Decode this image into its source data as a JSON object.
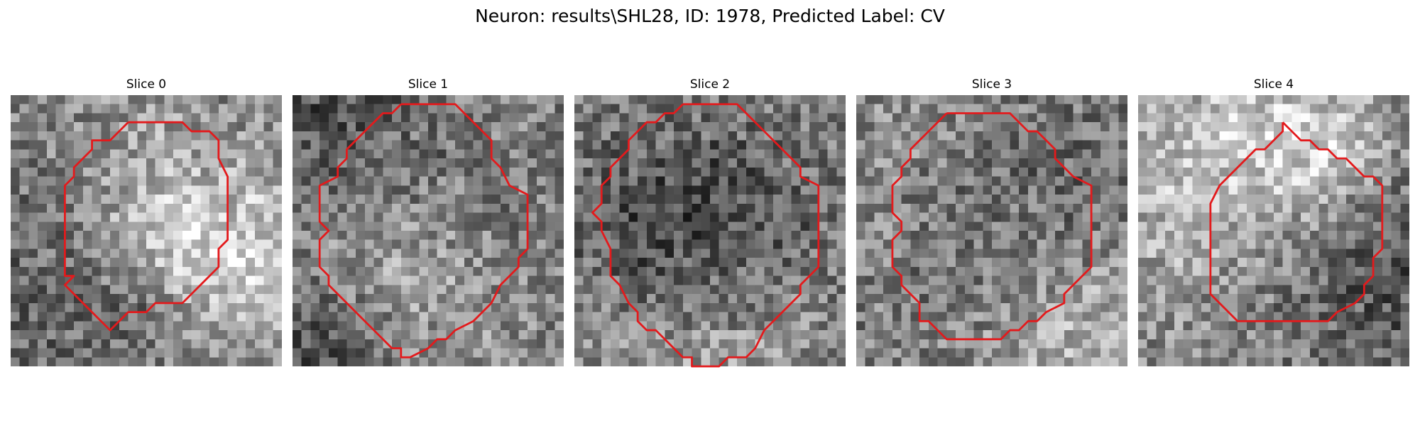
{
  "figure": {
    "title": "Neuron: results\\SHL28, ID: 1978, Predicted Label: CV"
  },
  "contour_color": "#e31a1c",
  "colormap": "gray",
  "grid_size": 30,
  "slices": [
    {
      "title": "Slice 0",
      "contour": [
        [
          13,
          3
        ],
        [
          19,
          3
        ],
        [
          20,
          4
        ],
        [
          22,
          4
        ],
        [
          23,
          5
        ],
        [
          23,
          6
        ],
        [
          23,
          7
        ],
        [
          23,
          7
        ],
        [
          24,
          9
        ],
        [
          24,
          16
        ],
        [
          23,
          17
        ],
        [
          23,
          19
        ],
        [
          21,
          21
        ],
        [
          20,
          22
        ],
        [
          19,
          23
        ],
        [
          16,
          23
        ],
        [
          15,
          24
        ],
        [
          13,
          24
        ],
        [
          12,
          25
        ],
        [
          12,
          25
        ],
        [
          11,
          26
        ],
        [
          10,
          25
        ],
        [
          9,
          24
        ],
        [
          8,
          23
        ],
        [
          7,
          22
        ],
        [
          6,
          21
        ],
        [
          7,
          20
        ],
        [
          6,
          20
        ],
        [
          6,
          17
        ],
        [
          6,
          10
        ],
        [
          7,
          9
        ],
        [
          7,
          8
        ],
        [
          8,
          7
        ],
        [
          9,
          6
        ],
        [
          9,
          5
        ],
        [
          11,
          5
        ],
        [
          12,
          4
        ],
        [
          13,
          3
        ]
      ]
    },
    {
      "title": "Slice 1",
      "contour": [
        [
          12,
          1
        ],
        [
          18,
          1
        ],
        [
          19,
          2
        ],
        [
          20,
          3
        ],
        [
          21,
          4
        ],
        [
          22,
          5
        ],
        [
          22,
          7
        ],
        [
          23,
          8
        ],
        [
          24,
          10
        ],
        [
          26,
          11
        ],
        [
          26,
          17
        ],
        [
          25,
          18
        ],
        [
          25,
          19
        ],
        [
          24,
          20
        ],
        [
          23,
          21
        ],
        [
          22,
          23
        ],
        [
          21,
          24
        ],
        [
          20,
          25
        ],
        [
          18,
          26
        ],
        [
          17,
          27
        ],
        [
          16,
          27
        ],
        [
          15,
          28
        ],
        [
          13,
          29
        ],
        [
          12,
          29
        ],
        [
          12,
          28
        ],
        [
          11,
          28
        ],
        [
          10,
          27
        ],
        [
          9,
          26
        ],
        [
          8,
          25
        ],
        [
          7,
          24
        ],
        [
          6,
          23
        ],
        [
          5,
          22
        ],
        [
          4,
          21
        ],
        [
          4,
          20
        ],
        [
          3,
          19
        ],
        [
          3,
          17
        ],
        [
          3,
          16
        ],
        [
          4,
          15
        ],
        [
          3,
          14
        ],
        [
          3,
          10
        ],
        [
          5,
          9
        ],
        [
          5,
          8
        ],
        [
          6,
          7
        ],
        [
          6,
          6
        ],
        [
          7,
          5
        ],
        [
          8,
          4
        ],
        [
          8,
          4
        ],
        [
          9,
          3
        ],
        [
          10,
          2
        ],
        [
          11,
          2
        ],
        [
          12,
          1
        ]
      ]
    },
    {
      "title": "Slice 2",
      "contour": [
        [
          12,
          1
        ],
        [
          18,
          1
        ],
        [
          19,
          2
        ],
        [
          20,
          3
        ],
        [
          21,
          4
        ],
        [
          22,
          5
        ],
        [
          23,
          6
        ],
        [
          24,
          7
        ],
        [
          25,
          8
        ],
        [
          25,
          9
        ],
        [
          27,
          10
        ],
        [
          27,
          19
        ],
        [
          26,
          20
        ],
        [
          25,
          21
        ],
        [
          25,
          22
        ],
        [
          24,
          23
        ],
        [
          23,
          24
        ],
        [
          22,
          25
        ],
        [
          21,
          26
        ],
        [
          20,
          28
        ],
        [
          19,
          29
        ],
        [
          17,
          29
        ],
        [
          16,
          30
        ],
        [
          16,
          30
        ],
        [
          14,
          30
        ],
        [
          13,
          30
        ],
        [
          13,
          29
        ],
        [
          12,
          29
        ],
        [
          11,
          28
        ],
        [
          10,
          27
        ],
        [
          9,
          26
        ],
        [
          8,
          26
        ],
        [
          7,
          25
        ],
        [
          7,
          24
        ],
        [
          6,
          23
        ],
        [
          5,
          21
        ],
        [
          4,
          20
        ],
        [
          4,
          19
        ],
        [
          4,
          17
        ],
        [
          3,
          15
        ],
        [
          3,
          14
        ],
        [
          2,
          13
        ],
        [
          3,
          12
        ],
        [
          3,
          11
        ],
        [
          3,
          10
        ],
        [
          4,
          9
        ],
        [
          4,
          8
        ],
        [
          5,
          7
        ],
        [
          6,
          6
        ],
        [
          6,
          5
        ],
        [
          7,
          4
        ],
        [
          8,
          3
        ],
        [
          9,
          3
        ],
        [
          10,
          2
        ],
        [
          11,
          2
        ],
        [
          12,
          1
        ]
      ]
    },
    {
      "title": "Slice 3",
      "contour": [
        [
          10,
          2
        ],
        [
          17,
          2
        ],
        [
          18,
          3
        ],
        [
          19,
          4
        ],
        [
          20,
          4
        ],
        [
          21,
          5
        ],
        [
          22,
          6
        ],
        [
          22,
          7
        ],
        [
          23,
          8
        ],
        [
          24,
          9
        ],
        [
          26,
          10
        ],
        [
          26,
          19
        ],
        [
          25,
          20
        ],
        [
          24,
          21
        ],
        [
          23,
          22
        ],
        [
          23,
          23
        ],
        [
          21,
          24
        ],
        [
          20,
          25
        ],
        [
          19,
          25
        ],
        [
          18,
          26
        ],
        [
          17,
          26
        ],
        [
          16,
          27
        ],
        [
          10,
          27
        ],
        [
          9,
          26
        ],
        [
          8,
          25
        ],
        [
          7,
          25
        ],
        [
          7,
          23
        ],
        [
          6,
          22
        ],
        [
          5,
          21
        ],
        [
          5,
          20
        ],
        [
          4,
          19
        ],
        [
          4,
          17
        ],
        [
          4,
          16
        ],
        [
          5,
          15
        ],
        [
          5,
          14
        ],
        [
          4,
          13
        ],
        [
          4,
          11
        ],
        [
          4,
          10
        ],
        [
          5,
          9
        ],
        [
          5,
          8
        ],
        [
          6,
          7
        ],
        [
          6,
          6
        ],
        [
          7,
          5
        ],
        [
          8,
          4
        ],
        [
          9,
          3
        ],
        [
          10,
          2
        ]
      ]
    },
    {
      "title": "Slice 4",
      "contour": [
        [
          16,
          3
        ],
        [
          17,
          4
        ],
        [
          18,
          5
        ],
        [
          19,
          5
        ],
        [
          20,
          6
        ],
        [
          21,
          6
        ],
        [
          22,
          7
        ],
        [
          23,
          7
        ],
        [
          24,
          8
        ],
        [
          25,
          9
        ],
        [
          26,
          9
        ],
        [
          27,
          10
        ],
        [
          27,
          17
        ],
        [
          26,
          18
        ],
        [
          26,
          20
        ],
        [
          25,
          21
        ],
        [
          25,
          22
        ],
        [
          24,
          23
        ],
        [
          22,
          24
        ],
        [
          21,
          25
        ],
        [
          20,
          25
        ],
        [
          19,
          25
        ],
        [
          17,
          25
        ],
        [
          16,
          25
        ],
        [
          14,
          25
        ],
        [
          12,
          25
        ],
        [
          11,
          25
        ],
        [
          10,
          24
        ],
        [
          9,
          23
        ],
        [
          8,
          22
        ],
        [
          8,
          21
        ],
        [
          8,
          17
        ],
        [
          8,
          13
        ],
        [
          8,
          12
        ],
        [
          9,
          10
        ],
        [
          10,
          9
        ],
        [
          11,
          8
        ],
        [
          12,
          7
        ],
        [
          13,
          6
        ],
        [
          14,
          6
        ],
        [
          15,
          5
        ],
        [
          16,
          4
        ],
        [
          16,
          3
        ]
      ]
    }
  ]
}
